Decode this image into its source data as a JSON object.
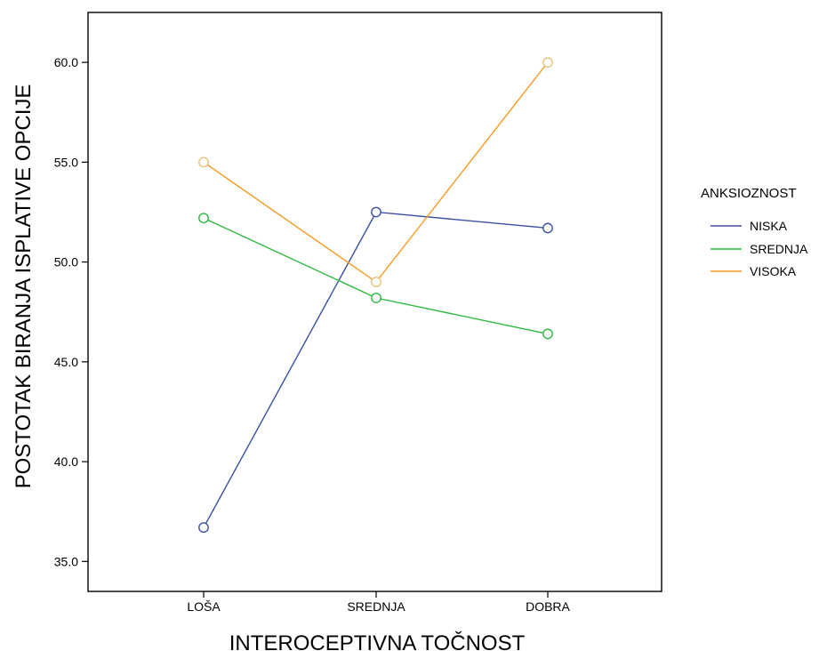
{
  "chart_data": {
    "type": "line",
    "xlabel": "INTEROCEPTIVNA TOČNOST",
    "ylabel": "POSTOTAK BIRANJA ISPLATIVE OPCIJE",
    "categories": [
      "LOŠA",
      "SREDNJA",
      "DOBRA"
    ],
    "ylim": [
      33.5,
      62.5
    ],
    "yticks": [
      35.0,
      40.0,
      45.0,
      50.0,
      55.0,
      60.0
    ],
    "ytick_labels": [
      "35.0",
      "40.0",
      "45.0",
      "50.0",
      "55.0",
      "60.0"
    ],
    "grid": false,
    "legend": {
      "title": "ANKSIOZNOST",
      "placement": "right"
    },
    "series": [
      {
        "name": "NISKA",
        "color": "#3b4fa3",
        "values": [
          36.7,
          52.5,
          51.7
        ]
      },
      {
        "name": "SREDNJA",
        "color": "#2dbb3f",
        "values": [
          52.2,
          48.2,
          46.4
        ]
      },
      {
        "name": "VISOKA",
        "color": "#f59a20",
        "values": [
          55.0,
          49.0,
          60.0
        ],
        "marker_colors": [
          "#e8c27e",
          "#e8c27e",
          "#e8c27e"
        ]
      }
    ]
  }
}
